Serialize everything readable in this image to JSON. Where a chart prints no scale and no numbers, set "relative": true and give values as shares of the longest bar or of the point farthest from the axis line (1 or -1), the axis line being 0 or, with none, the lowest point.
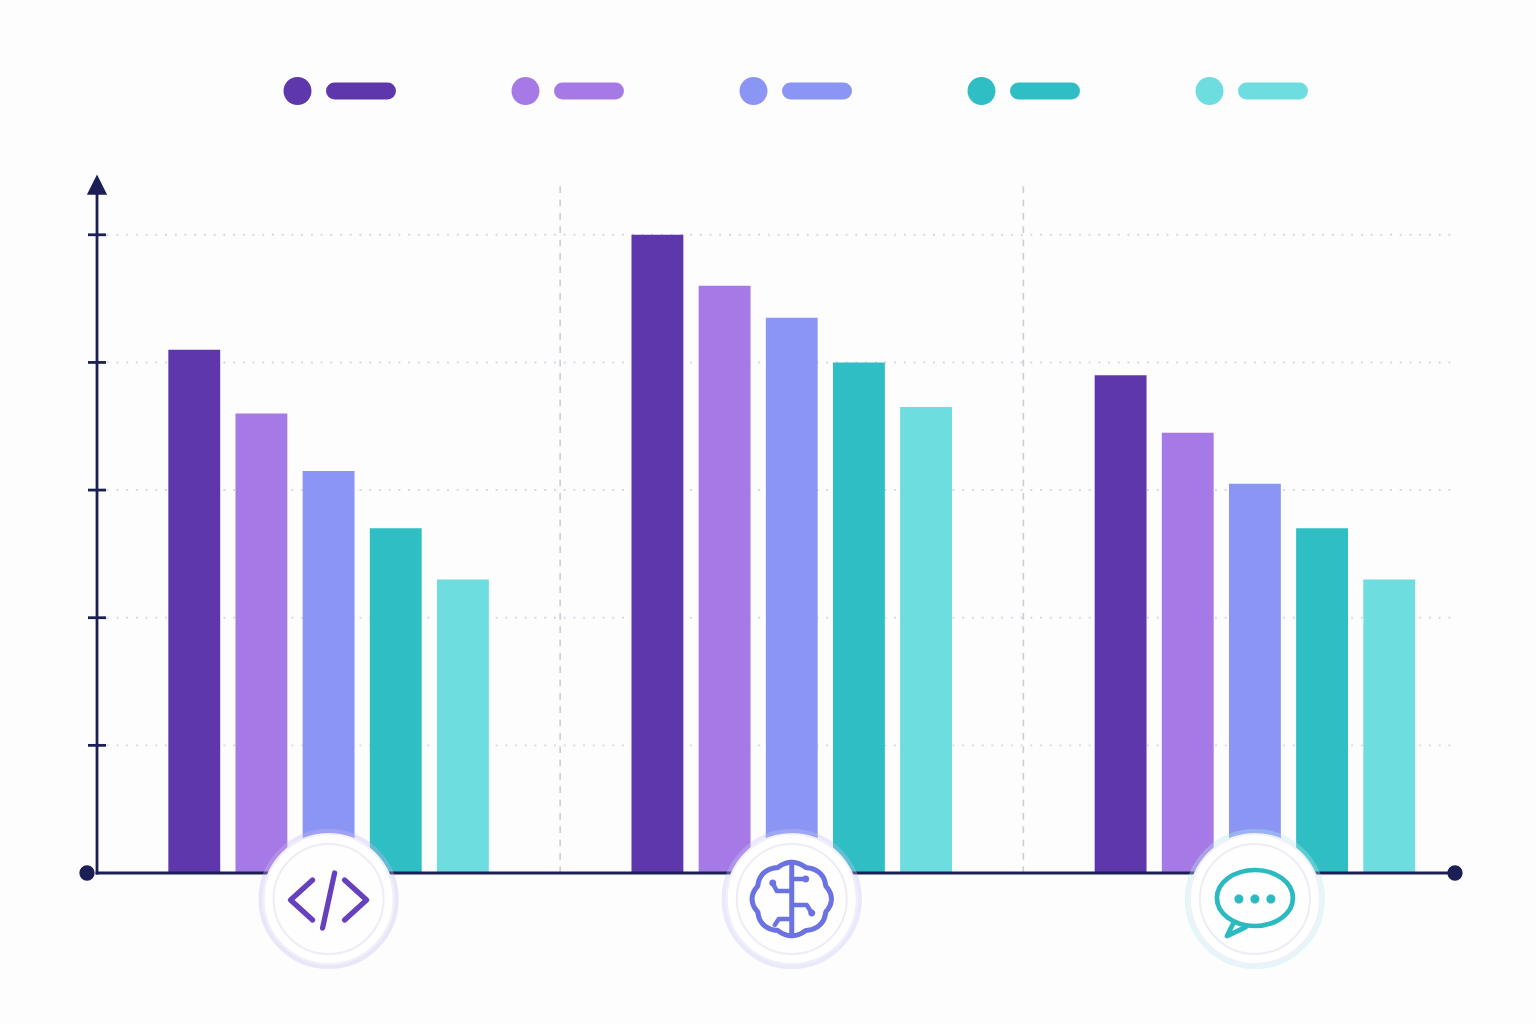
{
  "chart_data": {
    "type": "bar",
    "relative": true,
    "categories": [
      null,
      null,
      null
    ],
    "series": [
      {
        "color": "#5e37ad",
        "values": [
          0.82,
          1.0,
          0.78
        ]
      },
      {
        "color": "#a67ae6",
        "values": [
          0.72,
          0.92,
          0.69
        ]
      },
      {
        "color": "#8b96f4",
        "values": [
          0.63,
          0.87,
          0.61
        ]
      },
      {
        "color": "#2ebec3",
        "values": [
          0.54,
          0.8,
          0.54
        ]
      },
      {
        "color": "#6ddde0",
        "values": [
          0.46,
          0.73,
          0.46
        ]
      }
    ],
    "grid": true
  }
}
